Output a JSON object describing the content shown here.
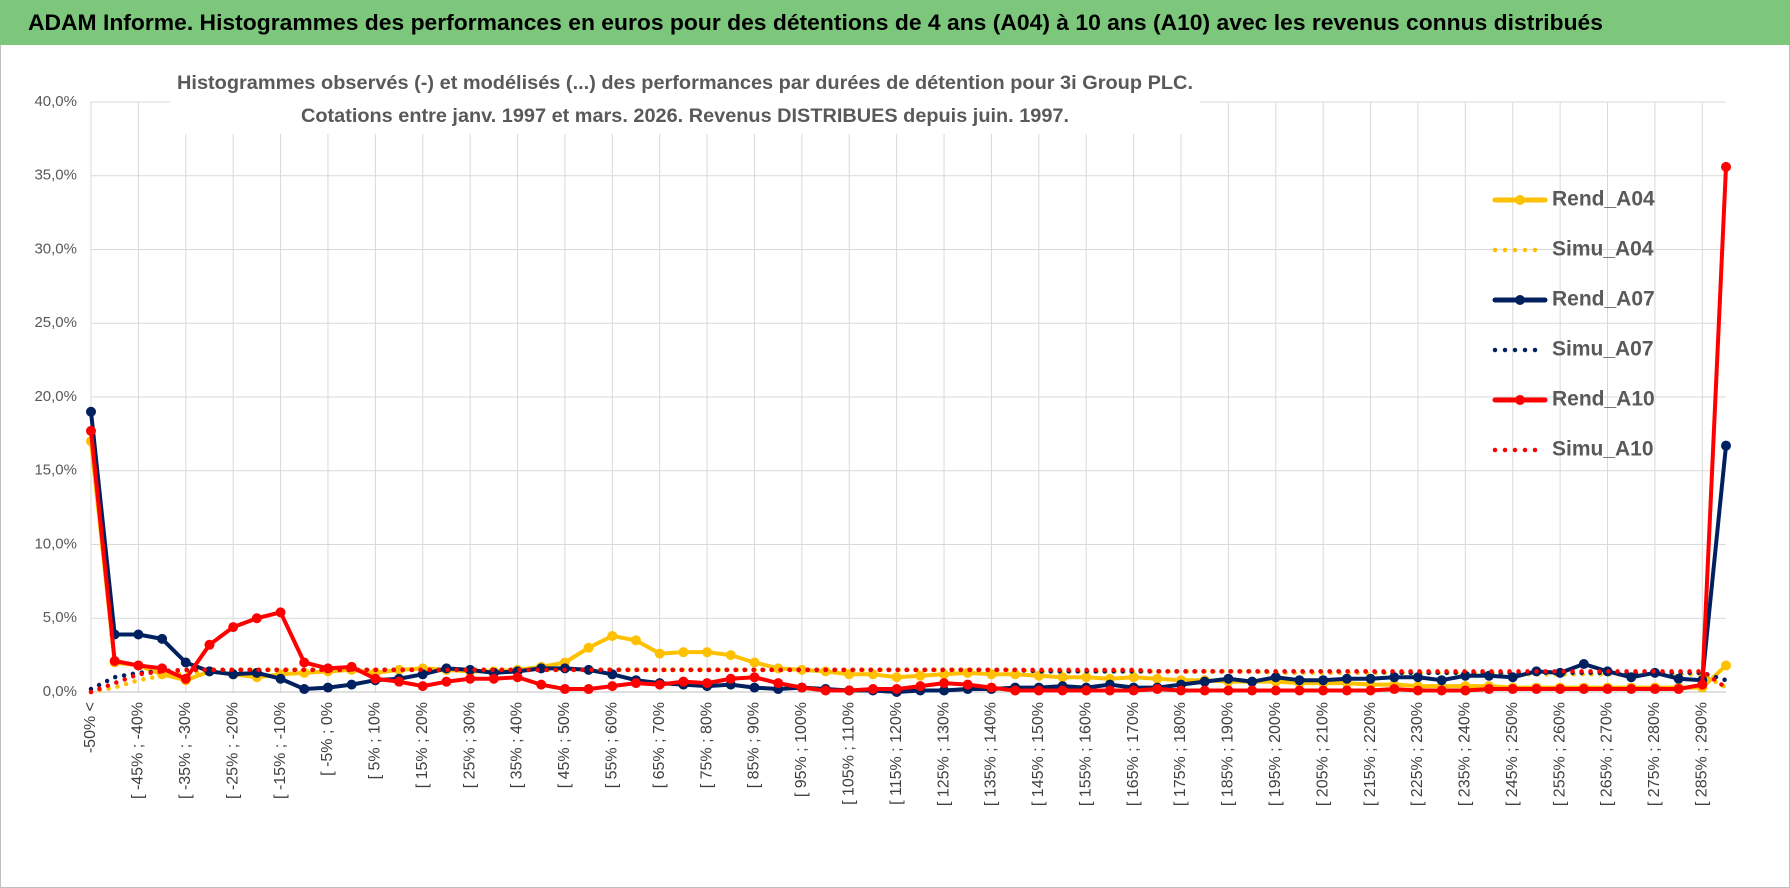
{
  "header": "ADAM Informe. Histogrammes des performances en euros pour des détentions de 4 ans (A04) à 10 ans (A10) avec les revenus connus distribués",
  "chart_data": {
    "type": "line",
    "title": [
      "Histogrammes observés (-) et modélisés (...) des performances par durées de détention pour 3i Group PLC.",
      "Cotations entre janv. 1997 et mars. 2026.  Revenus DISTRIBUES depuis juin. 1997."
    ],
    "categories": [
      "-50% <",
      null,
      "[ -45% ; -40%",
      null,
      "[ -35% ; -30%",
      null,
      "[ -25% ; -20%",
      null,
      "[ -15% ; -10%",
      null,
      "[ -5% ; 0%",
      null,
      "[ 5% ; 10%",
      null,
      "[ 15% ; 20%",
      null,
      "[ 25% ; 30%",
      null,
      "[ 35% ; 40%",
      null,
      "[ 45% ; 50%",
      null,
      "[ 55% ; 60%",
      null,
      "[ 65% ; 70%",
      null,
      "[ 75% ; 80%",
      null,
      "[ 85% ; 90%",
      null,
      "[ 95% ; 100%",
      null,
      "[ 105% ; 110%",
      null,
      "[ 115% ; 120%",
      null,
      "[ 125% ; 130%",
      null,
      "[ 135% ; 140%",
      null,
      "[ 145% ; 150%",
      null,
      "[ 155% ; 160%",
      null,
      "[ 165% ; 170%",
      null,
      "[ 175% ; 180%",
      null,
      "[ 185% ; 190%",
      null,
      "[ 195% ; 200%",
      null,
      "[ 205% ; 210%",
      null,
      "[ 215% ; 220%",
      null,
      "[ 225% ; 230%",
      null,
      "[ 235% ; 240%",
      null,
      "[ 245% ; 250%",
      null,
      "[ 255% ; 260%",
      null,
      "[ 265% ; 270%",
      null,
      "[ 275% ; 280%",
      null,
      "[ 285% ; 290%",
      null
    ],
    "series": [
      {
        "name": "Rend_A04",
        "color": "#ffc000",
        "style": "solid",
        "values": [
          17.0,
          2.0,
          1.8,
          1.2,
          0.8,
          1.4,
          1.2,
          1.0,
          1.2,
          1.3,
          1.4,
          1.5,
          1.3,
          1.5,
          1.6,
          1.5,
          1.4,
          1.4,
          1.5,
          1.7,
          2.0,
          3.0,
          3.8,
          3.5,
          2.6,
          2.7,
          2.7,
          2.5,
          2.0,
          1.6,
          1.5,
          1.4,
          1.2,
          1.2,
          1.0,
          1.1,
          1.2,
          1.3,
          1.2,
          1.2,
          1.1,
          1.0,
          1.0,
          0.9,
          1.0,
          0.9,
          0.8,
          0.8,
          0.7,
          0.7,
          0.7,
          0.6,
          0.6,
          0.6,
          0.5,
          0.5,
          0.4,
          0.4,
          0.4,
          0.4,
          0.3,
          0.3,
          0.3,
          0.3,
          0.3,
          0.3,
          0.3,
          0.3,
          0.3,
          1.8
        ]
      },
      {
        "name": "Simu_A04",
        "color": "#ffc000",
        "style": "dotted",
        "values": [
          0.0,
          0.3,
          0.8,
          1.1,
          1.3,
          1.4,
          1.5,
          1.5,
          1.5,
          1.5,
          1.5,
          1.5,
          1.5,
          1.5,
          1.5,
          1.5,
          1.5,
          1.5,
          1.5,
          1.5,
          1.5,
          1.5,
          1.5,
          1.5,
          1.5,
          1.5,
          1.5,
          1.5,
          1.5,
          1.5,
          1.5,
          1.5,
          1.5,
          1.5,
          1.5,
          1.5,
          1.5,
          1.5,
          1.5,
          1.5,
          1.4,
          1.4,
          1.4,
          1.4,
          1.4,
          1.4,
          1.4,
          1.4,
          1.4,
          1.4,
          1.3,
          1.3,
          1.3,
          1.3,
          1.3,
          1.3,
          1.3,
          1.3,
          1.3,
          1.3,
          1.2,
          1.2,
          1.2,
          1.2,
          1.2,
          1.2,
          1.2,
          1.2,
          1.2,
          0.3
        ]
      },
      {
        "name": "Rend_A07",
        "color": "#002060",
        "style": "solid",
        "values": [
          19.0,
          3.9,
          3.9,
          3.6,
          2.0,
          1.4,
          1.2,
          1.3,
          0.9,
          0.2,
          0.3,
          0.5,
          0.8,
          0.9,
          1.2,
          1.6,
          1.5,
          1.3,
          1.4,
          1.6,
          1.6,
          1.5,
          1.2,
          0.8,
          0.6,
          0.5,
          0.4,
          0.5,
          0.3,
          0.2,
          0.3,
          0.2,
          0.1,
          0.1,
          0.0,
          0.1,
          0.1,
          0.2,
          0.2,
          0.3,
          0.3,
          0.4,
          0.3,
          0.5,
          0.3,
          0.3,
          0.5,
          0.7,
          0.9,
          0.7,
          1.0,
          0.8,
          0.8,
          0.9,
          0.9,
          1.0,
          1.0,
          0.8,
          1.1,
          1.1,
          1.0,
          1.4,
          1.3,
          1.9,
          1.4,
          1.0,
          1.3,
          0.9,
          0.8,
          16.7
        ]
      },
      {
        "name": "Simu_A07",
        "color": "#002060",
        "style": "dotted",
        "values": [
          0.2,
          1.0,
          1.3,
          1.4,
          1.5,
          1.5,
          1.5,
          1.5,
          1.5,
          1.5,
          1.5,
          1.5,
          1.5,
          1.5,
          1.5,
          1.5,
          1.5,
          1.5,
          1.5,
          1.5,
          1.5,
          1.5,
          1.5,
          1.5,
          1.5,
          1.5,
          1.5,
          1.5,
          1.5,
          1.5,
          1.5,
          1.5,
          1.5,
          1.5,
          1.5,
          1.5,
          1.5,
          1.5,
          1.5,
          1.5,
          1.4,
          1.4,
          1.4,
          1.4,
          1.4,
          1.4,
          1.4,
          1.4,
          1.4,
          1.4,
          1.4,
          1.4,
          1.4,
          1.4,
          1.4,
          1.3,
          1.3,
          1.3,
          1.3,
          1.3,
          1.3,
          1.3,
          1.3,
          1.3,
          1.3,
          1.3,
          1.3,
          1.3,
          1.3,
          0.8
        ]
      },
      {
        "name": "Rend_A10",
        "color": "#ff0000",
        "style": "solid",
        "values": [
          17.7,
          2.1,
          1.8,
          1.6,
          0.9,
          3.2,
          4.4,
          5.0,
          5.4,
          2.0,
          1.6,
          1.7,
          0.9,
          0.7,
          0.4,
          0.7,
          0.9,
          0.9,
          1.0,
          0.5,
          0.2,
          0.2,
          0.4,
          0.6,
          0.5,
          0.7,
          0.6,
          0.9,
          1.0,
          0.6,
          0.3,
          0.1,
          0.1,
          0.2,
          0.2,
          0.4,
          0.6,
          0.5,
          0.3,
          0.1,
          0.1,
          0.1,
          0.1,
          0.1,
          0.1,
          0.2,
          0.1,
          0.1,
          0.1,
          0.1,
          0.1,
          0.1,
          0.1,
          0.1,
          0.1,
          0.2,
          0.1,
          0.1,
          0.1,
          0.2,
          0.2,
          0.2,
          0.2,
          0.2,
          0.2,
          0.2,
          0.2,
          0.2,
          0.5,
          35.6
        ]
      },
      {
        "name": "Simu_A10",
        "color": "#ff0000",
        "style": "dotted",
        "values": [
          0.0,
          0.6,
          1.2,
          1.4,
          1.5,
          1.5,
          1.5,
          1.5,
          1.5,
          1.5,
          1.5,
          1.5,
          1.5,
          1.5,
          1.5,
          1.5,
          1.5,
          1.5,
          1.5,
          1.5,
          1.5,
          1.5,
          1.5,
          1.5,
          1.5,
          1.5,
          1.5,
          1.5,
          1.5,
          1.5,
          1.5,
          1.5,
          1.5,
          1.5,
          1.5,
          1.5,
          1.5,
          1.5,
          1.5,
          1.5,
          1.5,
          1.5,
          1.5,
          1.5,
          1.5,
          1.4,
          1.4,
          1.4,
          1.4,
          1.4,
          1.4,
          1.4,
          1.4,
          1.4,
          1.4,
          1.4,
          1.4,
          1.4,
          1.4,
          1.4,
          1.4,
          1.4,
          1.4,
          1.4,
          1.4,
          1.4,
          1.4,
          1.4,
          1.4,
          0.3
        ]
      }
    ],
    "ylim": [
      0,
      40
    ],
    "yticks": [
      {
        "value": 0,
        "label": "0,0%"
      },
      {
        "value": 5,
        "label": "5,0%"
      },
      {
        "value": 10,
        "label": "10,0%"
      },
      {
        "value": 15,
        "label": "15,0%"
      },
      {
        "value": 20,
        "label": "20,0%"
      },
      {
        "value": 25,
        "label": "25,0%"
      },
      {
        "value": 30,
        "label": "30,0%"
      },
      {
        "value": 35,
        "label": "35,0%"
      },
      {
        "value": 40,
        "label": "40,0%"
      }
    ],
    "grid": true,
    "legend": "right"
  }
}
